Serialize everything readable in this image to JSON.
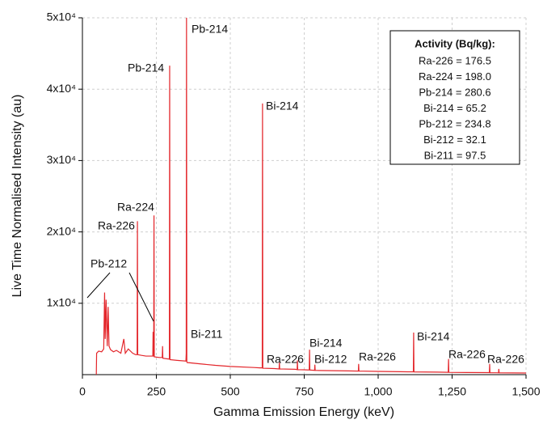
{
  "chart_data": {
    "type": "line",
    "xlabel": "Gamma Emission Energy (keV)",
    "ylabel": "Live Time Normalised Intensity (au)",
    "color": "#e3262b",
    "grid": true,
    "xlim": [
      0,
      1500
    ],
    "ylim": [
      0,
      50000
    ],
    "xticks": [
      0,
      250,
      500,
      750,
      {
        "value": 1000,
        "label": "1,000"
      },
      {
        "value": 1250,
        "label": "1,250"
      },
      {
        "value": 1500,
        "label": "1,500"
      }
    ],
    "yticks": [
      {
        "value": 10000,
        "label": "1x10⁴"
      },
      {
        "value": 20000,
        "label": "2x10⁴"
      },
      {
        "value": 30000,
        "label": "3x10⁴"
      },
      {
        "value": 40000,
        "label": "4x10⁴"
      },
      {
        "value": 50000,
        "label": "5x10⁴"
      }
    ],
    "x": [
      47,
      48,
      55,
      65,
      72,
      75,
      77,
      80,
      84,
      87,
      90,
      95,
      105,
      115,
      130,
      140,
      145,
      155,
      170,
      180,
      185,
      186,
      187,
      200,
      215,
      238,
      239,
      240,
      241,
      242,
      243,
      260,
      270,
      271,
      272,
      290,
      294,
      295,
      296,
      320,
      350,
      351,
      352,
      353,
      354,
      400,
      450,
      500,
      580,
      600,
      608,
      609,
      610,
      650,
      665,
      666,
      667,
      720,
      726,
      727,
      728,
      750,
      767,
      768,
      769,
      785,
      786,
      787,
      800,
      900,
      933,
      934,
      935,
      1000,
      1100,
      1119,
      1120,
      1121,
      1200,
      1237,
      1238,
      1239,
      1300,
      1376,
      1377,
      1378,
      1400,
      1407,
      1408,
      1409,
      1500
    ],
    "values": [
      0,
      3000,
      3300,
      3200,
      3600,
      11500,
      5000,
      10500,
      4000,
      9500,
      4000,
      3500,
      3200,
      3400,
      3000,
      5000,
      3000,
      3600,
      3000,
      2800,
      2800,
      21500,
      2800,
      2700,
      2600,
      2600,
      6000,
      2600,
      2600,
      22300,
      2500,
      2400,
      2400,
      4000,
      2300,
      2200,
      2200,
      43300,
      2100,
      2000,
      1900,
      3000,
      50000,
      1800,
      1700,
      1500,
      1300,
      1150,
      1000,
      950,
      950,
      38000,
      900,
      850,
      800,
      1700,
      800,
      750,
      700,
      2000,
      700,
      680,
      650,
      3500,
      650,
      600,
      1400,
      600,
      580,
      520,
      500,
      1500,
      500,
      450,
      400,
      400,
      5900,
      380,
      350,
      330,
      2200,
      320,
      300,
      280,
      1500,
      270,
      260,
      250,
      800,
      250,
      230
    ],
    "annotations": [
      "Pb-214",
      "Pb-214",
      "Bi-214",
      "Ra-224",
      "Ra-226",
      "Pb-212",
      "Bi-211",
      "Ra-226",
      "Bi-214",
      "Bi-212",
      "Ra-226",
      "Bi-214",
      "Ra-226",
      "Ra-226"
    ],
    "activity_box": {
      "title": "Activity (Bq/kg):",
      "items": [
        "Ra-226 = 176.5",
        "Ra-224 = 198.0",
        "Pb-214 = 280.6",
        "Bi-214 = 65.2",
        "Pb-212 = 234.8",
        "Bi-212 = 32.1",
        "Bi-211 = 97.5"
      ]
    }
  }
}
